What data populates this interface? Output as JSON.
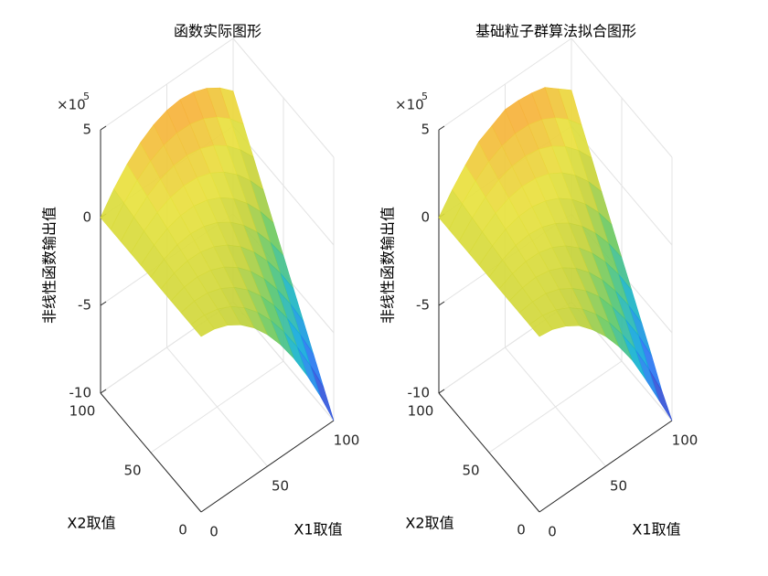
{
  "chart_data": [
    {
      "type": "surface",
      "title": "函数实际图形",
      "x_label": "X1取值",
      "y_label": "X2取值",
      "z_label": "非线性函数输出值",
      "z_scale": "×10",
      "z_exponent": "5",
      "x": [
        0,
        10,
        20,
        30,
        40,
        50,
        60,
        70,
        80,
        90,
        100
      ],
      "y": [
        0,
        10,
        20,
        30,
        40,
        50,
        60,
        70,
        80,
        90,
        100
      ],
      "z": [
        [
          0,
          -0.1,
          -0.4,
          -0.9,
          -1.6,
          -2.5,
          -3.6,
          -4.9,
          -6.4,
          -8.1,
          -10
        ],
        [
          0,
          0.02,
          -0.16,
          -0.54,
          -1.12,
          -1.9,
          -2.88,
          -4.06,
          -5.44,
          -7.02,
          -8.8
        ],
        [
          0,
          0.14,
          0.08,
          -0.18,
          -0.64,
          -1.3,
          -2.16,
          -3.22,
          -4.48,
          -5.94,
          -7.6
        ],
        [
          0,
          0.26,
          0.32,
          0.18,
          -0.16,
          -0.7,
          -1.44,
          -2.38,
          -3.52,
          -4.86,
          -6.4
        ],
        [
          0,
          0.38,
          0.56,
          0.54,
          0.32,
          -0.1,
          -0.72,
          -1.54,
          -2.56,
          -3.78,
          -5.2
        ],
        [
          0,
          0.5,
          0.8,
          0.9,
          0.8,
          0.5,
          0,
          -0.7,
          -1.6,
          -2.7,
          -4
        ],
        [
          0,
          0.62,
          1.04,
          1.26,
          1.28,
          1.1,
          0.72,
          0.14,
          -0.64,
          -1.62,
          -2.8
        ],
        [
          0,
          0.74,
          1.28,
          1.62,
          1.76,
          1.7,
          1.44,
          0.98,
          0.32,
          -0.54,
          -1.6
        ],
        [
          0,
          0.86,
          1.52,
          1.98,
          2.24,
          2.3,
          2.16,
          1.82,
          1.28,
          0.54,
          -0.4
        ],
        [
          0,
          0.98,
          1.76,
          2.34,
          2.72,
          2.9,
          2.88,
          2.66,
          2.24,
          1.62,
          0.8
        ],
        [
          0,
          1.1,
          2.0,
          2.7,
          3.2,
          3.5,
          3.6,
          3.5,
          3.2,
          2.7,
          2.0
        ]
      ],
      "xlim": [
        0,
        100
      ],
      "xticks": [
        0,
        50,
        100
      ],
      "ylim": [
        0,
        100
      ],
      "yticks": [
        0,
        50,
        100
      ],
      "zlim": [
        -10,
        5
      ],
      "zticks": [
        -10,
        -5,
        0,
        5
      ],
      "grid": true,
      "colormap": [
        "#3e26a8",
        "#2d6ff6",
        "#12b1d6",
        "#5cc86a",
        "#c3d13a",
        "#e8e23e",
        "#f9a93a"
      ]
    },
    {
      "type": "surface",
      "title": "基础粒子群算法拟合图形",
      "x_label": "X1取值",
      "y_label": "X2取值",
      "z_label": "非线性函数输出值",
      "z_scale": "×10",
      "z_exponent": "5",
      "x": [
        0,
        10,
        20,
        30,
        40,
        50,
        60,
        70,
        80,
        90,
        100
      ],
      "y": [
        0,
        10,
        20,
        30,
        40,
        50,
        60,
        70,
        80,
        90,
        100
      ],
      "z": [
        [
          0,
          -0.12,
          -0.45,
          -0.95,
          -1.7,
          -2.6,
          -3.7,
          -5.0,
          -6.6,
          -8.3,
          -10
        ],
        [
          0,
          0.0,
          -0.2,
          -0.6,
          -1.2,
          -2.0,
          -3.0,
          -4.2,
          -5.6,
          -7.2,
          -9.0
        ],
        [
          0,
          0.1,
          0.05,
          -0.22,
          -0.7,
          -1.35,
          -2.2,
          -3.3,
          -4.55,
          -6.0,
          -7.7
        ],
        [
          0,
          0.22,
          0.3,
          0.15,
          -0.2,
          -0.75,
          -1.5,
          -2.45,
          -3.6,
          -4.95,
          -6.5
        ],
        [
          0,
          0.35,
          0.52,
          0.5,
          0.28,
          -0.15,
          -0.78,
          -1.6,
          -2.62,
          -3.85,
          -5.3
        ],
        [
          0,
          0.46,
          0.76,
          0.86,
          0.76,
          0.45,
          -0.05,
          -0.75,
          -1.66,
          -2.76,
          -4.1
        ],
        [
          0,
          0.58,
          1.0,
          1.22,
          1.24,
          1.05,
          0.68,
          0.1,
          -0.68,
          -1.68,
          -2.9
        ],
        [
          0,
          0.7,
          1.24,
          1.58,
          1.72,
          1.66,
          1.4,
          0.94,
          0.28,
          -0.6,
          -1.7
        ],
        [
          0,
          0.82,
          1.48,
          1.94,
          2.2,
          2.26,
          2.12,
          1.78,
          1.24,
          0.5,
          -0.45
        ],
        [
          0,
          0.94,
          1.72,
          2.3,
          2.68,
          2.86,
          2.84,
          2.62,
          2.2,
          1.58,
          0.75
        ],
        [
          0,
          1.05,
          1.95,
          2.75,
          3.15,
          3.55,
          3.55,
          3.45,
          3.25,
          2.65,
          2.05
        ]
      ],
      "xlim": [
        0,
        100
      ],
      "xticks": [
        0,
        50,
        100
      ],
      "ylim": [
        0,
        100
      ],
      "yticks": [
        0,
        50,
        100
      ],
      "zlim": [
        -10,
        5
      ],
      "zticks": [
        -10,
        -5,
        0,
        5
      ],
      "grid": true,
      "colormap": [
        "#3e26a8",
        "#2d6ff6",
        "#12b1d6",
        "#5cc86a",
        "#c3d13a",
        "#e8e23e",
        "#f9a93a"
      ]
    }
  ]
}
